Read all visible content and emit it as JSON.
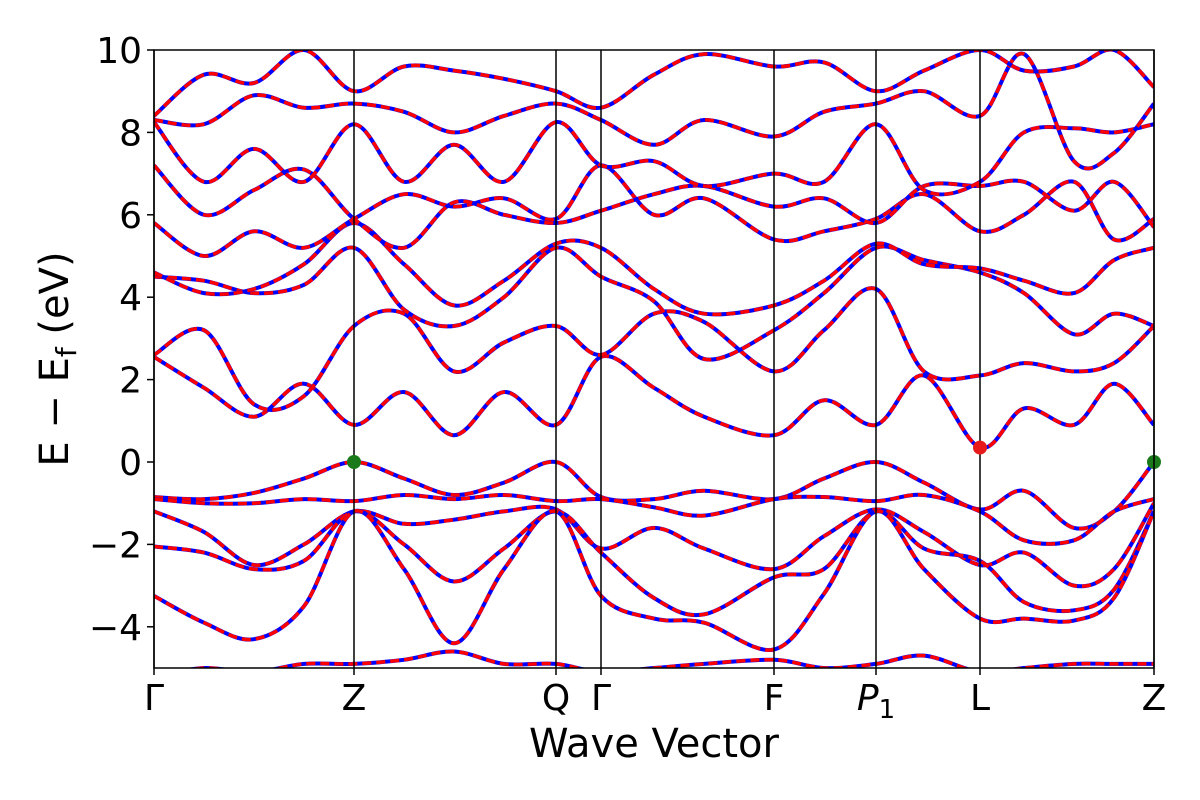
{
  "chart_data": {
    "type": "line",
    "title": "",
    "xlabel": "Wave Vector",
    "ylabel": "E − E_f (eV)",
    "ylim": [
      -5,
      10
    ],
    "yticks": [
      -4,
      -2,
      0,
      2,
      4,
      6,
      8,
      10
    ],
    "ytick_labels": [
      "−4",
      "−2",
      "0",
      "2",
      "4",
      "6",
      "8",
      "10"
    ],
    "xlim": [
      0,
      1
    ],
    "grid": false,
    "legend": "none",
    "kpoints": [
      {
        "label": "Γ",
        "x": 0.0
      },
      {
        "label": "Z",
        "x": 0.2
      },
      {
        "label": "Q",
        "x": 0.402
      },
      {
        "label": "Γ",
        "x": 0.447
      },
      {
        "label": "F",
        "x": 0.62
      },
      {
        "label": "P",
        "sub": "1",
        "x": 0.722
      },
      {
        "label": "L",
        "x": 0.826
      },
      {
        "label": "Z",
        "x": 1.0
      }
    ],
    "colors": {
      "band_primary": "#0000ff",
      "band_overlay": "#ff0000",
      "vbm_marker": "#1a7a1a",
      "cbm_marker": "#e8191b"
    },
    "markers": [
      {
        "name": "VBM",
        "x": 0.2,
        "y": 0.0,
        "color": "#1a7a1a"
      },
      {
        "name": "VBM",
        "x": 1.0,
        "y": 0.0,
        "color": "#1a7a1a"
      },
      {
        "name": "CBM",
        "x": 0.826,
        "y": 0.35,
        "color": "#e8191b"
      }
    ],
    "series": [
      {
        "x": [
          0,
          0.05,
          0.1,
          0.15,
          0.2,
          0.25,
          0.3,
          0.35,
          0.402,
          0.447,
          0.5,
          0.55,
          0.62,
          0.67,
          0.722,
          0.77,
          0.826,
          0.87,
          0.92,
          0.96,
          1.0
        ],
        "y": [
          -0.85,
          -0.9,
          -0.75,
          -0.4,
          0.0,
          -0.4,
          -0.8,
          -0.5,
          0.0,
          -0.85,
          -0.9,
          -0.7,
          -0.9,
          -0.4,
          0.0,
          -0.5,
          -1.15,
          -0.7,
          -1.6,
          -1.2,
          0.0
        ]
      },
      {
        "x": [
          0,
          0.05,
          0.1,
          0.15,
          0.2,
          0.25,
          0.3,
          0.35,
          0.402,
          0.447,
          0.5,
          0.55,
          0.62,
          0.67,
          0.722,
          0.77,
          0.826,
          0.87,
          0.92,
          0.96,
          1.0
        ],
        "y": [
          -0.9,
          -1.0,
          -1.0,
          -0.9,
          -0.95,
          -0.8,
          -0.9,
          -0.8,
          -0.95,
          -0.9,
          -1.1,
          -1.3,
          -0.9,
          -0.85,
          -0.95,
          -0.8,
          -1.2,
          -1.9,
          -1.9,
          -1.2,
          -0.9
        ]
      },
      {
        "x": [
          0,
          0.05,
          0.1,
          0.15,
          0.2,
          0.25,
          0.3,
          0.35,
          0.402,
          0.447,
          0.5,
          0.55,
          0.62,
          0.67,
          0.722,
          0.77,
          0.826,
          0.87,
          0.92,
          0.96,
          1.0
        ],
        "y": [
          -1.2,
          -1.7,
          -2.5,
          -2.0,
          -1.2,
          -1.5,
          -1.4,
          -1.2,
          -1.15,
          -2.1,
          -1.6,
          -2.1,
          -2.6,
          -1.8,
          -1.15,
          -1.7,
          -2.5,
          -2.2,
          -3.0,
          -2.6,
          -1.0
        ]
      },
      {
        "x": [
          0,
          0.05,
          0.1,
          0.15,
          0.2,
          0.25,
          0.3,
          0.35,
          0.402,
          0.447,
          0.5,
          0.55,
          0.62,
          0.67,
          0.722,
          0.77,
          0.826,
          0.87,
          0.92,
          0.96,
          1.0
        ],
        "y": [
          -2.05,
          -2.2,
          -2.6,
          -2.4,
          -1.2,
          -2.0,
          -2.9,
          -2.1,
          -1.2,
          -2.2,
          -3.3,
          -3.7,
          -2.8,
          -2.6,
          -1.2,
          -2.1,
          -2.4,
          -3.4,
          -3.6,
          -3.1,
          -1.2
        ]
      },
      {
        "x": [
          0,
          0.05,
          0.1,
          0.15,
          0.2,
          0.25,
          0.3,
          0.35,
          0.402,
          0.447,
          0.5,
          0.55,
          0.62,
          0.67,
          0.722,
          0.77,
          0.826,
          0.87,
          0.92,
          0.96,
          1.0
        ],
        "y": [
          -3.25,
          -3.9,
          -4.3,
          -3.5,
          -1.2,
          -2.6,
          -4.4,
          -2.6,
          -1.2,
          -3.25,
          -3.8,
          -3.9,
          -4.55,
          -3.2,
          -1.2,
          -2.6,
          -3.8,
          -3.8,
          -3.85,
          -3.3,
          -1.2
        ]
      },
      {
        "x": [
          0,
          0.05,
          0.1,
          0.15,
          0.2,
          0.25,
          0.3,
          0.35,
          0.402,
          0.447,
          0.5,
          0.55,
          0.62,
          0.67,
          0.722,
          0.77,
          0.826,
          0.87,
          0.92,
          0.96,
          1.0
        ],
        "y": [
          2.55,
          1.8,
          1.1,
          1.9,
          0.9,
          1.7,
          0.65,
          1.7,
          0.9,
          2.55,
          1.8,
          1.1,
          0.65,
          1.5,
          0.9,
          2.1,
          0.35,
          1.3,
          0.9,
          1.9,
          0.9
        ]
      },
      {
        "x": [
          0,
          0.05,
          0.1,
          0.15,
          0.2,
          0.25,
          0.3,
          0.35,
          0.402,
          0.447,
          0.5,
          0.55,
          0.62,
          0.67,
          0.722,
          0.77,
          0.826,
          0.87,
          0.92,
          0.96,
          1.0
        ],
        "y": [
          2.6,
          3.2,
          1.4,
          1.6,
          3.3,
          3.6,
          2.2,
          2.9,
          3.3,
          2.6,
          3.6,
          3.4,
          2.2,
          3.2,
          4.2,
          2.2,
          2.1,
          2.4,
          2.2,
          2.4,
          3.3
        ]
      },
      {
        "x": [
          0,
          0.05,
          0.1,
          0.15,
          0.2,
          0.25,
          0.3,
          0.35,
          0.402,
          0.447,
          0.5,
          0.55,
          0.62,
          0.67,
          0.722,
          0.77,
          0.826,
          0.87,
          0.92,
          0.96,
          1.0
        ],
        "y": [
          4.5,
          4.4,
          4.1,
          4.3,
          5.2,
          3.7,
          3.3,
          4.0,
          5.2,
          4.5,
          3.9,
          2.5,
          3.2,
          4.1,
          5.2,
          4.9,
          4.6,
          4.1,
          3.1,
          3.6,
          3.3
        ]
      },
      {
        "x": [
          0,
          0.05,
          0.1,
          0.15,
          0.2,
          0.25,
          0.3,
          0.35,
          0.402,
          0.447,
          0.5,
          0.55,
          0.62,
          0.67,
          0.722,
          0.77,
          0.826,
          0.87,
          0.92,
          0.96,
          1.0
        ],
        "y": [
          4.6,
          4.1,
          4.2,
          4.8,
          5.8,
          4.8,
          3.8,
          4.4,
          5.3,
          5.2,
          4.2,
          3.6,
          3.8,
          4.4,
          5.3,
          4.8,
          4.7,
          4.4,
          4.1,
          4.9,
          5.2
        ]
      },
      {
        "x": [
          0,
          0.05,
          0.1,
          0.15,
          0.2,
          0.25,
          0.3,
          0.35,
          0.402,
          0.447,
          0.5,
          0.55,
          0.62,
          0.67,
          0.722,
          0.77,
          0.826,
          0.87,
          0.92,
          0.96,
          1.0
        ],
        "y": [
          5.8,
          5.0,
          5.6,
          5.2,
          5.9,
          6.5,
          6.2,
          6.4,
          5.9,
          7.2,
          6.0,
          6.4,
          5.4,
          5.6,
          5.9,
          6.5,
          5.6,
          6.0,
          6.8,
          5.4,
          5.9
        ]
      },
      {
        "x": [
          0,
          0.05,
          0.1,
          0.15,
          0.2,
          0.25,
          0.3,
          0.35,
          0.402,
          0.447,
          0.5,
          0.55,
          0.62,
          0.67,
          0.722,
          0.77,
          0.826,
          0.87,
          0.92,
          0.96,
          1.0
        ],
        "y": [
          7.2,
          6.0,
          6.6,
          7.1,
          5.9,
          5.2,
          6.3,
          6.0,
          5.8,
          6.1,
          6.5,
          6.7,
          6.2,
          6.4,
          5.8,
          6.7,
          6.7,
          6.8,
          6.1,
          6.8,
          5.7
        ]
      },
      {
        "x": [
          0,
          0.05,
          0.1,
          0.15,
          0.2,
          0.25,
          0.3,
          0.35,
          0.402,
          0.447,
          0.5,
          0.55,
          0.62,
          0.67,
          0.722,
          0.77,
          0.826,
          0.87,
          0.92,
          0.96,
          1.0
        ],
        "y": [
          8.25,
          6.8,
          7.6,
          6.8,
          8.2,
          6.8,
          7.7,
          6.8,
          8.25,
          7.2,
          7.3,
          6.7,
          7.0,
          6.8,
          8.2,
          6.6,
          6.8,
          8.0,
          8.1,
          8.0,
          8.2
        ]
      },
      {
        "x": [
          0,
          0.05,
          0.1,
          0.15,
          0.2,
          0.25,
          0.3,
          0.35,
          0.402,
          0.447,
          0.5,
          0.55,
          0.62,
          0.67,
          0.722,
          0.77,
          0.826,
          0.87,
          0.92,
          0.96,
          1.0
        ],
        "y": [
          8.3,
          8.2,
          8.9,
          8.6,
          8.7,
          8.5,
          8.0,
          8.4,
          8.7,
          8.3,
          7.7,
          8.3,
          7.9,
          8.5,
          8.7,
          9.0,
          8.4,
          9.9,
          7.3,
          7.5,
          8.7
        ]
      },
      {
        "x": [
          0,
          0.05,
          0.1,
          0.15,
          0.2,
          0.25,
          0.3,
          0.35,
          0.402,
          0.447,
          0.5,
          0.55,
          0.62,
          0.67,
          0.722,
          0.77,
          0.826,
          0.87,
          0.92,
          0.96,
          1.0
        ],
        "y": [
          8.4,
          9.4,
          9.2,
          10.0,
          9.0,
          9.6,
          9.5,
          9.3,
          9.0,
          8.6,
          9.4,
          9.9,
          9.6,
          9.7,
          9.0,
          9.5,
          10.0,
          9.5,
          9.6,
          10.0,
          9.1
        ]
      },
      {
        "x": [
          0,
          0.05,
          0.1,
          0.15,
          0.2,
          0.25,
          0.3,
          0.35,
          0.402,
          0.447,
          0.5,
          0.55,
          0.62,
          0.67,
          0.722,
          0.77,
          0.826,
          0.87,
          0.92,
          0.96,
          1.0
        ],
        "y": [
          -5.2,
          -5.0,
          -5.1,
          -4.9,
          -4.9,
          -4.8,
          -4.6,
          -4.9,
          -4.9,
          -5.1,
          -5.0,
          -4.9,
          -4.8,
          -5.0,
          -4.9,
          -4.7,
          -5.1,
          -5.0,
          -4.9,
          -4.9,
          -4.9
        ]
      }
    ]
  }
}
